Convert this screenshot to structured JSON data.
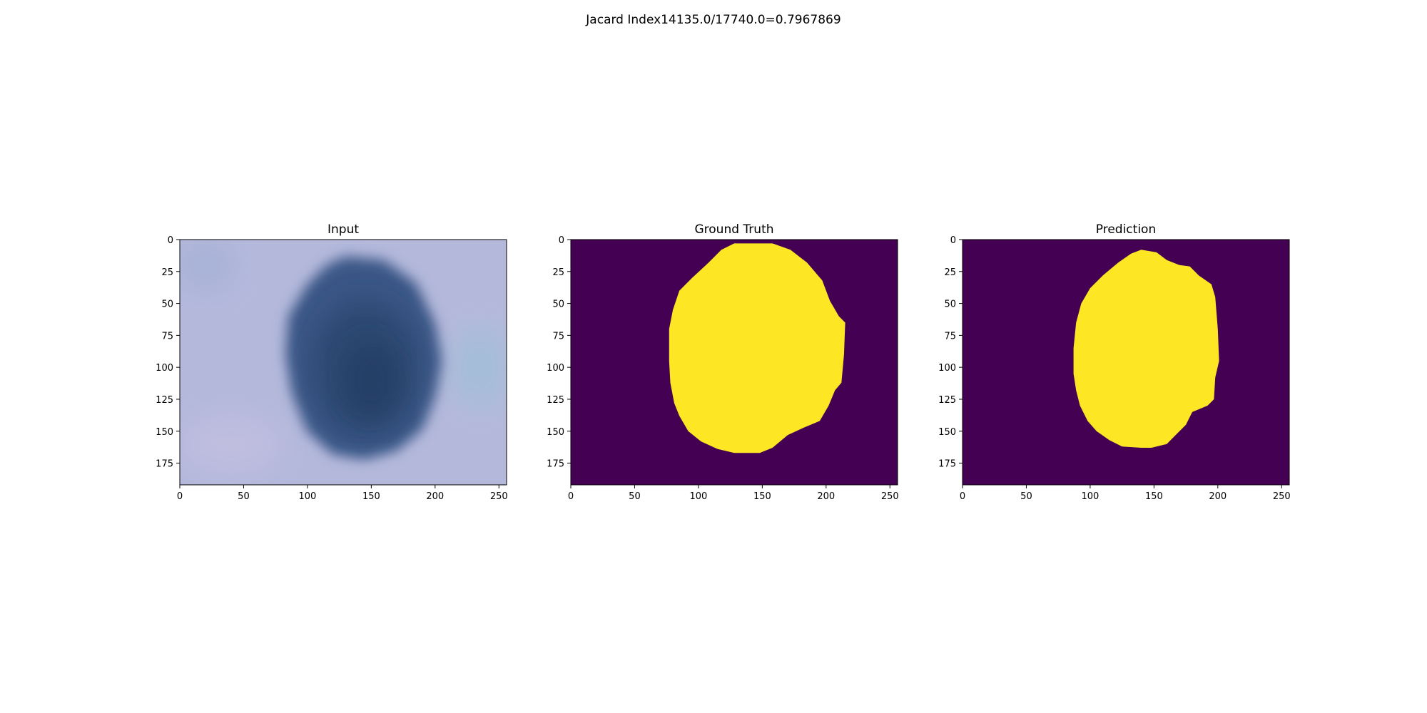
{
  "figure": {
    "suptitle": "Jacard Index14135.0/17740.0=0.7967869"
  },
  "colors": {
    "background": "#440154",
    "foreground": "#fde725",
    "skin": "#b4b9dc",
    "lesion": "#2b4670"
  },
  "chart_data": [
    {
      "type": "heatmap",
      "title": "Input",
      "image_size": [
        256,
        192
      ],
      "xlim": [
        0,
        256
      ],
      "ylim": [
        192,
        0
      ],
      "xticks": [
        0,
        50,
        100,
        150,
        200,
        250
      ],
      "yticks": [
        0,
        25,
        50,
        75,
        100,
        125,
        150,
        175
      ],
      "content": "dermoscopy image: dark blue lesion on light bluish skin",
      "lesion_outline": [
        [
          130,
          13
        ],
        [
          160,
          16
        ],
        [
          185,
          34
        ],
        [
          200,
          66
        ],
        [
          205,
          95
        ],
        [
          200,
          122
        ],
        [
          190,
          148
        ],
        [
          170,
          165
        ],
        [
          145,
          172
        ],
        [
          120,
          168
        ],
        [
          100,
          150
        ],
        [
          88,
          120
        ],
        [
          83,
          90
        ],
        [
          85,
          60
        ],
        [
          100,
          35
        ],
        [
          115,
          20
        ]
      ]
    },
    {
      "type": "heatmap",
      "title": "Ground Truth",
      "image_size": [
        256,
        192
      ],
      "xlim": [
        0,
        256
      ],
      "ylim": [
        192,
        0
      ],
      "xticks": [
        0,
        50,
        100,
        150,
        200,
        250
      ],
      "yticks": [
        0,
        25,
        50,
        75,
        100,
        125,
        150,
        175
      ],
      "colormap": "viridis",
      "values": [
        0,
        1
      ],
      "mask_outline": [
        [
          128,
          3
        ],
        [
          158,
          3
        ],
        [
          172,
          8
        ],
        [
          185,
          18
        ],
        [
          197,
          32
        ],
        [
          203,
          48
        ],
        [
          210,
          60
        ],
        [
          215,
          65
        ],
        [
          214,
          90
        ],
        [
          212,
          112
        ],
        [
          207,
          118
        ],
        [
          202,
          130
        ],
        [
          195,
          142
        ],
        [
          183,
          147
        ],
        [
          170,
          153
        ],
        [
          158,
          163
        ],
        [
          148,
          167
        ],
        [
          128,
          167
        ],
        [
          115,
          164
        ],
        [
          102,
          158
        ],
        [
          92,
          150
        ],
        [
          85,
          138
        ],
        [
          81,
          128
        ],
        [
          78,
          112
        ],
        [
          77,
          95
        ],
        [
          77,
          70
        ],
        [
          80,
          55
        ],
        [
          85,
          40
        ],
        [
          95,
          30
        ],
        [
          108,
          18
        ],
        [
          118,
          8
        ]
      ]
    },
    {
      "type": "heatmap",
      "title": "Prediction",
      "image_size": [
        256,
        192
      ],
      "xlim": [
        0,
        256
      ],
      "ylim": [
        192,
        0
      ],
      "xticks": [
        0,
        50,
        100,
        150,
        200,
        250
      ],
      "yticks": [
        0,
        25,
        50,
        75,
        100,
        125,
        150,
        175
      ],
      "colormap": "viridis",
      "values": [
        0,
        1
      ],
      "mask_outline": [
        [
          140,
          8
        ],
        [
          152,
          10
        ],
        [
          160,
          16
        ],
        [
          170,
          20
        ],
        [
          178,
          21
        ],
        [
          185,
          28
        ],
        [
          195,
          35
        ],
        [
          198,
          45
        ],
        [
          200,
          70
        ],
        [
          201,
          95
        ],
        [
          198,
          108
        ],
        [
          197,
          125
        ],
        [
          192,
          130
        ],
        [
          180,
          135
        ],
        [
          175,
          145
        ],
        [
          168,
          152
        ],
        [
          160,
          160
        ],
        [
          148,
          163
        ],
        [
          140,
          163
        ],
        [
          125,
          162
        ],
        [
          115,
          157
        ],
        [
          105,
          150
        ],
        [
          98,
          142
        ],
        [
          92,
          130
        ],
        [
          89,
          118
        ],
        [
          87,
          105
        ],
        [
          87,
          85
        ],
        [
          89,
          65
        ],
        [
          93,
          50
        ],
        [
          100,
          38
        ],
        [
          110,
          28
        ],
        [
          122,
          18
        ],
        [
          132,
          11
        ]
      ]
    }
  ]
}
